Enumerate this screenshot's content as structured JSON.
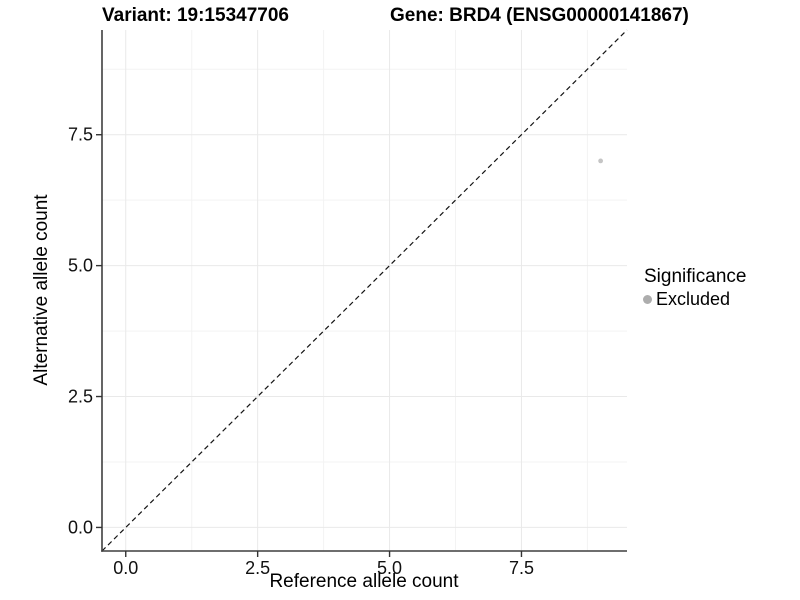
{
  "chart_data": {
    "type": "scatter",
    "title_left": "Variant: 19:15347706",
    "title_right": "Gene: BRD4 (ENSG00000141867)",
    "xlabel": "Reference allele count",
    "ylabel": "Alternative allele count",
    "xlim": [
      -0.45,
      9.5
    ],
    "ylim": [
      -0.45,
      9.5
    ],
    "xticks": [
      0.0,
      2.5,
      5.0,
      7.5
    ],
    "yticks": [
      0.0,
      2.5,
      5.0,
      7.5
    ],
    "minor_ticks": [
      1.25,
      3.75,
      6.25,
      8.75
    ],
    "tick_decimals": 1,
    "grid": "major+minor",
    "points": [
      {
        "x": 9,
        "y": 7,
        "series": "Excluded"
      }
    ],
    "identity_line": {
      "slope": 1,
      "intercept": 0,
      "style": "dashed"
    },
    "legend": {
      "title": "Significance",
      "position": "right",
      "items": [
        {
          "label": "Excluded",
          "color": "#adadad"
        }
      ]
    },
    "colors": {
      "point": "#c5c5c5",
      "grid_major": "#e9e9e9",
      "grid_minor": "#f3f3f3",
      "axis_line": "#3f3f3f",
      "tick_mark": "#333333",
      "abline": "#141414",
      "background": "#ffffff"
    }
  }
}
